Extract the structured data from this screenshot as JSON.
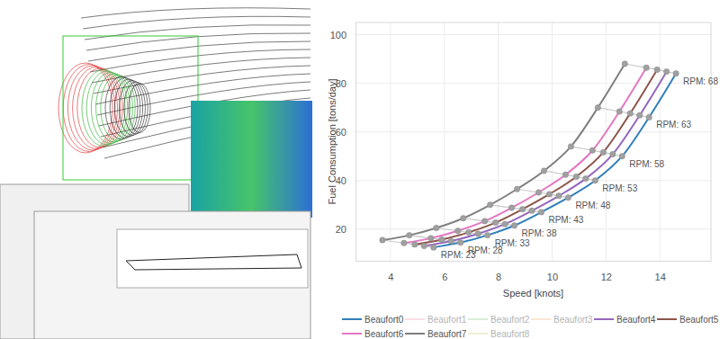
{
  "chart_data": {
    "type": "line",
    "x_label": "Speed [knots]",
    "y_label": "Fuel Consumption [tons/day]",
    "xlim": [
      2.7,
      15.9
    ],
    "ylim": [
      7,
      105
    ],
    "xticks": [
      4,
      6,
      8,
      10,
      12,
      14
    ],
    "yticks": [
      20,
      40,
      60,
      80,
      100
    ],
    "grid": true,
    "legend": "bottom",
    "marker": "circle",
    "series": [
      {
        "name": "Beaufort0",
        "color": "#2f7fba",
        "x": [
          5.6,
          6.6,
          7.6,
          8.6,
          9.6,
          10.6,
          11.6,
          12.6,
          13.6,
          14.6
        ],
        "values": [
          12.5,
          14.5,
          17.5,
          21.5,
          27,
          33,
          40,
          50,
          66,
          84
        ]
      },
      {
        "name": "Beaufort1",
        "color": "#f4b6c2",
        "x": [],
        "values": []
      },
      {
        "name": "Beaufort2",
        "color": "#a9d8a9",
        "x": [],
        "values": []
      },
      {
        "name": "Beaufort3",
        "color": "#f8c9a0",
        "x": [],
        "values": []
      },
      {
        "name": "Beaufort4",
        "color": "#9467bd",
        "x": [
          5.25,
          6.25,
          7.25,
          8.25,
          9.25,
          10.25,
          11.25,
          12.25,
          13.25,
          14.25
        ],
        "values": [
          13.1,
          15.1,
          18.1,
          22.1,
          27.6,
          33.7,
          40.8,
          50.8,
          66.8,
          84.8
        ]
      },
      {
        "name": "Beaufort5",
        "color": "#8c564b",
        "x": [
          4.9,
          5.9,
          6.9,
          7.9,
          8.9,
          9.9,
          10.9,
          11.9,
          12.9,
          13.9
        ],
        "values": [
          13.7,
          15.7,
          18.7,
          22.7,
          28.2,
          34.4,
          41.6,
          51.6,
          67.6,
          85.6
        ]
      },
      {
        "name": "Beaufort6",
        "color": "#e377c2",
        "x": [
          4.5,
          5.5,
          6.5,
          7.5,
          8.5,
          9.5,
          10.5,
          11.5,
          12.5,
          13.5
        ],
        "values": [
          14.3,
          16.3,
          19.3,
          23.3,
          28.8,
          35.1,
          42.4,
          52.4,
          68.4,
          86.4
        ]
      },
      {
        "name": "Beaufort7",
        "color": "#7f7f7f",
        "x": [
          3.7,
          4.7,
          5.7,
          6.7,
          7.7,
          8.7,
          9.7,
          10.7,
          11.7,
          12.7
        ],
        "values": [
          15.5,
          17.5,
          20.5,
          24.5,
          30,
          36.5,
          44,
          54,
          70,
          88
        ]
      },
      {
        "name": "Beaufort8",
        "color": "#dcdc9a",
        "x": [],
        "values": []
      }
    ],
    "annotations": [
      {
        "text": "RPM: 23",
        "x": 5.6,
        "y": 12.5
      },
      {
        "text": "RPM: 28",
        "x": 6.6,
        "y": 14.5
      },
      {
        "text": "RPM: 33",
        "x": 7.6,
        "y": 17.5
      },
      {
        "text": "RPM: 38",
        "x": 8.6,
        "y": 21.5
      },
      {
        "text": "RPM: 43",
        "x": 9.6,
        "y": 27
      },
      {
        "text": "RPM: 48",
        "x": 10.6,
        "y": 33
      },
      {
        "text": "RPM: 53",
        "x": 11.6,
        "y": 40
      },
      {
        "text": "RPM: 58",
        "x": 12.6,
        "y": 50
      },
      {
        "text": "RPM: 63",
        "x": 13.6,
        "y": 66
      },
      {
        "text": "RPM: 68",
        "x": 14.6,
        "y": 84
      }
    ]
  }
}
